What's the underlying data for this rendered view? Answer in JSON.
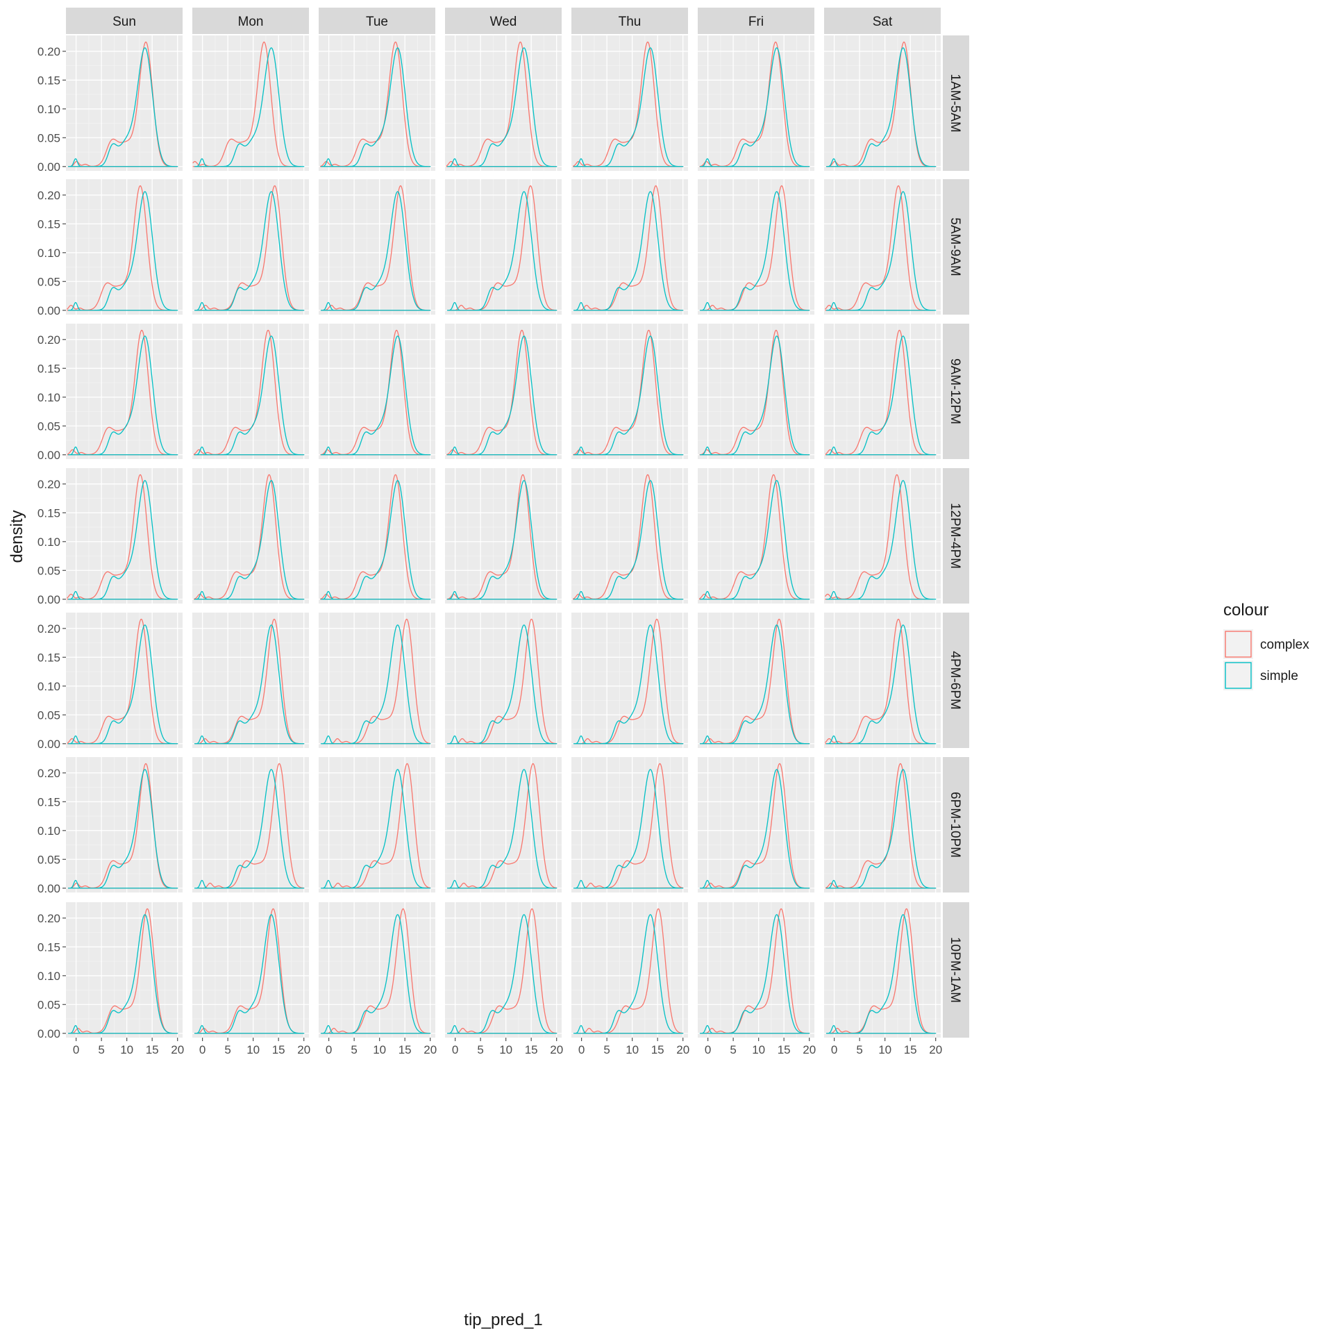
{
  "chart_data": {
    "type": "line",
    "subtype": "density",
    "xlabel": "tip_pred_1",
    "ylabel": "density",
    "xlim": [
      -2,
      21
    ],
    "ylim": [
      -0.0075,
      0.2275
    ],
    "x_ticks": [
      0,
      5,
      10,
      15,
      20
    ],
    "x_tick_labels": [
      "0",
      "5",
      "10",
      "15",
      "20"
    ],
    "y_ticks": [
      0.0,
      0.05,
      0.1,
      0.15,
      0.2
    ],
    "y_tick_labels": [
      "0.00",
      "0.05",
      "0.10",
      "0.15",
      "0.20"
    ],
    "grid": true,
    "columns": [
      "Sun",
      "Mon",
      "Tue",
      "Wed",
      "Thu",
      "Fri",
      "Sat"
    ],
    "rows": [
      "1AM-5AM",
      "5AM-9AM",
      "9AM-12PM",
      "12PM-4PM",
      "4PM-6PM",
      "6PM-10PM",
      "10PM-1AM"
    ],
    "legend": {
      "title": "colour",
      "position": "right",
      "entries": [
        {
          "name": "complex",
          "color": "#F8766D"
        },
        {
          "name": "simple",
          "color": "#00BFC4"
        }
      ]
    },
    "series_shape": {
      "simple": {
        "peak_x": 13.6,
        "peak_density": 0.206
      },
      "complex": {
        "peak_density": 0.216
      }
    },
    "complex_peak_x": [
      [
        13.7,
        12.1,
        13.1,
        12.8,
        13.0,
        13.3,
        13.7
      ],
      [
        12.6,
        14.2,
        14.1,
        14.8,
        14.6,
        14.5,
        12.6
      ],
      [
        12.9,
        12.9,
        13.3,
        13.1,
        13.2,
        13.4,
        12.8
      ],
      [
        12.6,
        13.1,
        13.1,
        13.3,
        13.0,
        12.9,
        12.3
      ],
      [
        12.8,
        14.1,
        15.3,
        15.0,
        14.8,
        14.0,
        12.6
      ],
      [
        13.7,
        15.1,
        15.4,
        15.3,
        15.4,
        14.1,
        13.0
      ],
      [
        14.0,
        13.9,
        14.6,
        15.1,
        15.1,
        14.4,
        14.2
      ]
    ]
  },
  "colors": {
    "panel_bg": "#EBEBEB",
    "grid_major": "#FFFFFF",
    "strip_bg": "#D9D9D9",
    "text": "#1A1A1A",
    "tick": "#4D4D4D"
  }
}
